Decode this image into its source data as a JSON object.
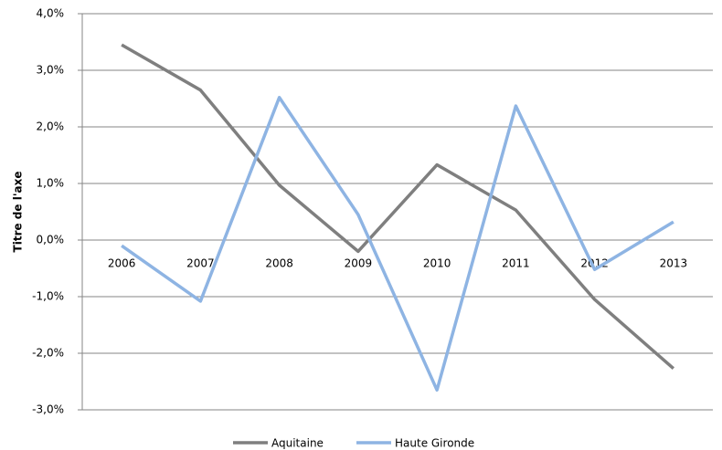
{
  "chart_data": {
    "type": "line",
    "y_axis_title": "Titre de l'axe",
    "categories": [
      "2006",
      "2007",
      "2008",
      "2009",
      "2010",
      "2011",
      "2012",
      "2013"
    ],
    "series": [
      {
        "name": "Aquitaine",
        "color": "#7f7f7f",
        "values": [
          3.45,
          2.65,
          0.97,
          -0.2,
          1.33,
          0.53,
          -1.05,
          -2.27
        ]
      },
      {
        "name": "Haute Gironde",
        "color": "#8eb4e3",
        "values": [
          -0.1,
          -1.08,
          2.52,
          0.45,
          -2.65,
          2.37,
          -0.52,
          0.32
        ]
      }
    ],
    "ylim": [
      -3,
      4
    ],
    "yticks": [
      {
        "value": -3,
        "label": "-3,0%"
      },
      {
        "value": -2,
        "label": "-2,0%"
      },
      {
        "value": -1,
        "label": "-1,0%"
      },
      {
        "value": 0,
        "label": "0,0%"
      },
      {
        "value": 1,
        "label": "1,0%"
      },
      {
        "value": 2,
        "label": "2,0%"
      },
      {
        "value": 3,
        "label": "3,0%"
      },
      {
        "value": 4,
        "label": "4,0%"
      }
    ],
    "grid": true,
    "legend": "bottom"
  }
}
